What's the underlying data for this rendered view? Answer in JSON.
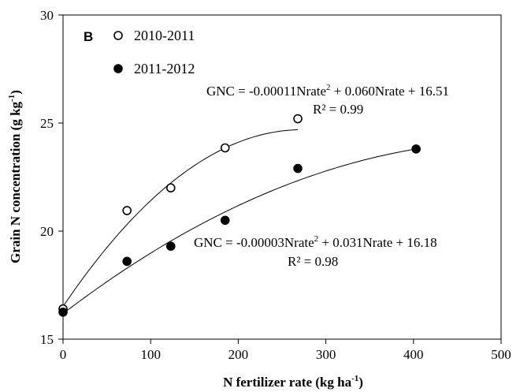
{
  "chart_data": {
    "type": "scatter",
    "panel_label": "B",
    "xlabel": {
      "text": "N fertilizer  rate (kg ha",
      "sup": "-1",
      "close": ")"
    },
    "ylabel": {
      "text": "Grain N concentration (g kg",
      "sup": "-1",
      "close": ")"
    },
    "xlim": [
      0,
      500
    ],
    "ylim": [
      15,
      30
    ],
    "x_ticks": [
      0,
      100,
      200,
      300,
      400,
      500
    ],
    "y_ticks": [
      15,
      20,
      25,
      30
    ],
    "grid": false,
    "legend_position": "top-left",
    "series": [
      {
        "name": "2010-2011",
        "marker": "open-circle",
        "color": "#000000",
        "x": [
          0,
          73,
          123,
          185,
          268
        ],
        "y": [
          16.4,
          20.95,
          22.0,
          23.85,
          25.2
        ],
        "fit": {
          "a": -0.00011,
          "b": 0.06,
          "c": 16.51,
          "x_range": [
            0,
            268
          ],
          "equation": {
            "pre": "GNC = -0.00011Nrate",
            "sup": "2",
            "post": " + 0.060Nrate + 16.51"
          },
          "r2": "R² = 0.99"
        }
      },
      {
        "name": "2011-2012",
        "marker": "filled-circle",
        "color": "#000000",
        "x": [
          0,
          73,
          123,
          185,
          268,
          403
        ],
        "y": [
          16.25,
          18.6,
          19.3,
          20.5,
          22.9,
          23.8
        ],
        "fit": {
          "a": -3e-05,
          "b": 0.031,
          "c": 16.18,
          "x_range": [
            0,
            403
          ],
          "equation": {
            "pre": "GNC = -0.00003Nrate",
            "sup": "2",
            "post": " + 0.031Nrate + 16.18"
          },
          "r2": "R² = 0.98"
        }
      }
    ]
  }
}
